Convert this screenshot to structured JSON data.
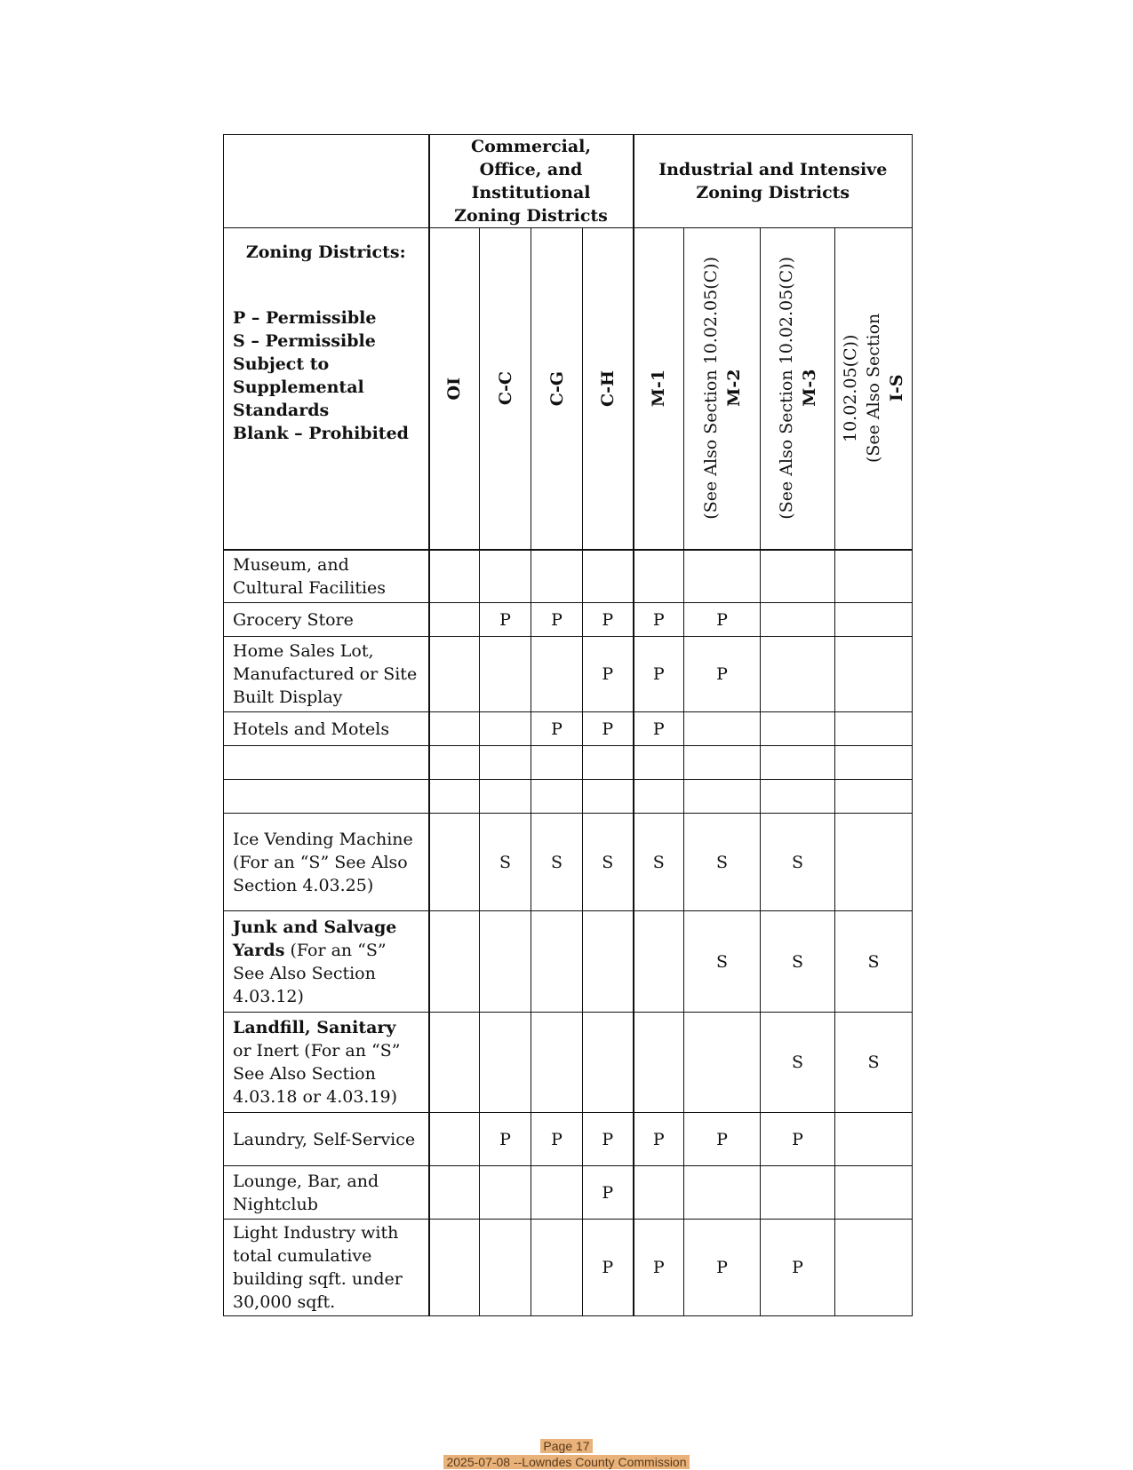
{
  "header": {
    "group_commercial": "Commercial, Office, and Institutional Zoning Districts",
    "group_industrial": "Industrial and Intensive Zoning Districts",
    "legend_title": "Zoning Districts:",
    "legend_lines": [
      "P – Permissible",
      "S – Permissible Subject to Supplemental Standards",
      "Blank – Prohibited"
    ],
    "columns": [
      {
        "code": "OI",
        "note": ""
      },
      {
        "code": "C-C",
        "note": ""
      },
      {
        "code": "C-G",
        "note": ""
      },
      {
        "code": "C-H",
        "note": ""
      },
      {
        "code": "M-1",
        "note": ""
      },
      {
        "code": "M-2",
        "note": "(See Also Section 10.02.05(C))"
      },
      {
        "code": "M-3",
        "note": "(See Also Section 10.02.05(C))"
      },
      {
        "code": "I-S",
        "note": "(See Also Section 10.02.05(C))"
      }
    ]
  },
  "rows": [
    {
      "bold": "",
      "label": "Museum, and Cultural Facilities",
      "values": [
        "",
        "",
        "",
        "",
        "",
        "",
        "",
        ""
      ]
    },
    {
      "bold": "",
      "label": "Grocery Store",
      "values": [
        "",
        "P",
        "P",
        "P",
        "P",
        "P",
        "",
        ""
      ]
    },
    {
      "bold": "",
      "label": "Home Sales Lot, Manufactured or Site Built Display",
      "values": [
        "",
        "",
        "",
        "P",
        "P",
        "P",
        "",
        ""
      ]
    },
    {
      "bold": "",
      "label": "Hotels and Motels",
      "values": [
        "",
        "",
        "P",
        "P",
        "P",
        "",
        "",
        ""
      ]
    },
    {
      "bold": "",
      "label": "",
      "values": [
        "",
        "",
        "",
        "",
        "",
        "",
        "",
        ""
      ]
    },
    {
      "bold": "",
      "label": "",
      "values": [
        "",
        "",
        "",
        "",
        "",
        "",
        "",
        ""
      ]
    },
    {
      "bold": "",
      "label": "Ice Vending Machine (For an “S” See Also Section 4.03.25)",
      "values": [
        "",
        "S",
        "S",
        "S",
        "S",
        "S",
        "S",
        ""
      ]
    },
    {
      "bold": "Junk and Salvage Yards",
      "label": "(For an “S” See Also Section 4.03.12)",
      "values": [
        "",
        "",
        "",
        "",
        "",
        "S",
        "S",
        "S"
      ]
    },
    {
      "bold": "Landfill, Sanitary",
      "label": "or Inert (For an “S” See Also Section 4.03.18 or 4.03.19)",
      "values": [
        "",
        "",
        "",
        "",
        "",
        "",
        "S",
        "S"
      ]
    },
    {
      "bold": "",
      "label": "Laundry, Self-Service",
      "values": [
        "",
        "P",
        "P",
        "P",
        "P",
        "P",
        "P",
        ""
      ]
    },
    {
      "bold": "",
      "label": "Lounge, Bar, and Nightclub",
      "values": [
        "",
        "",
        "",
        "P",
        "",
        "",
        "",
        ""
      ]
    },
    {
      "bold": "",
      "label": "Light Industry with total cumulative building sqft. under 30,000 sqft.",
      "values": [
        "",
        "",
        "",
        "P",
        "P",
        "P",
        "P",
        ""
      ]
    }
  ],
  "footer": {
    "page": "Page 17",
    "meeting": "2025-07-08 --Lowndes County Commission"
  }
}
